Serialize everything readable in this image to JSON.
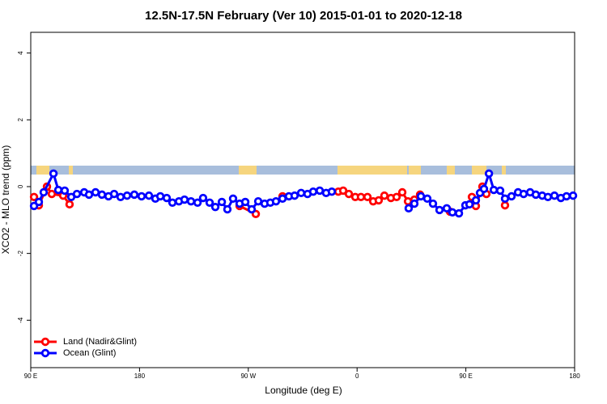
{
  "chart_data": {
    "type": "line",
    "title": "12.5N-17.5N February (Ver 10)   2015-01-01 to 2020-12-18",
    "x_label": "Longitude (deg E)",
    "y_label": "XCO2 - MLO trend (ppm)",
    "xlim": [
      90,
      540
    ],
    "xticks": [
      {
        "value": 90,
        "label": "90 E"
      },
      180,
      {
        "value": 270,
        "label": "90 W"
      },
      {
        "value": 360,
        "label": "0"
      },
      {
        "value": 450,
        "label": "90 E"
      },
      {
        "value": 540,
        "label": "180"
      }
    ],
    "ylim": [
      -5.42,
      4.62
    ],
    "yticks": [
      -4,
      -2,
      0,
      2,
      4
    ],
    "legend": "bottom-left",
    "series": [
      {
        "name": "Land (Nadir&Glint)",
        "color": "#ff0000",
        "x": [
          92.7,
          96.7,
          103.4,
          107.4,
          116.8,
          122.1,
          null,
          262.8,
          276.2,
          null,
          298.3,
          null,
          344.5,
          348.5,
          353.2,
          358.5,
          363.2,
          368.6,
          373.3,
          377.9,
          382.6,
          388.0,
          392.7,
          397.4,
          402.1,
          407.4,
          412.1,
          null,
          436.9,
          null,
          455.0,
          458.3,
          463.7,
          467.0,
          null,
          482.4
        ],
        "values": [
          -0.31,
          -0.56,
          0.0,
          -0.22,
          -0.27,
          -0.53,
          null,
          -0.58,
          -0.82,
          null,
          -0.29,
          null,
          -0.15,
          -0.12,
          -0.22,
          -0.31,
          -0.31,
          -0.31,
          -0.44,
          -0.41,
          -0.27,
          -0.34,
          -0.31,
          -0.17,
          -0.44,
          -0.39,
          -0.24,
          null,
          -0.75,
          null,
          -0.31,
          -0.58,
          0.0,
          -0.22,
          null,
          -0.56
        ]
      },
      {
        "name": "Ocean (Glint)",
        "color": "#0000ff",
        "x": [
          92.7,
          96.7,
          100.7,
          108.8,
          112.8,
          118.1,
          123.5,
          128.2,
          134.2,
          138.2,
          143.6,
          148.9,
          154.3,
          159.0,
          164.3,
          169.7,
          175.7,
          181.7,
          187.8,
          193.1,
          197.2,
          202.5,
          207.2,
          212.6,
          217.2,
          222.6,
          228.0,
          232.6,
          238.0,
          242.7,
          248.1,
          252.7,
          257.4,
          262.8,
          267.5,
          272.8,
          278.2,
          283.5,
          288.2,
          292.9,
          298.3,
          303.6,
          308.3,
          313.7,
          319.0,
          323.7,
          329.1,
          334.4,
          339.1,
          null,
          402.7,
          407.4,
          412.8,
          418.1,
          422.8,
          428.2,
          434.2,
          438.9,
          444.3,
          449.6,
          453.0,
          458.3,
          461.7,
          465.0,
          469.1,
          473.1,
          478.4,
          482.4,
          487.8,
          493.2,
          497.8,
          503.2,
          507.9,
          513.2,
          517.9,
          523.3,
          528.6,
          533.3,
          538.7
        ],
        "values": [
          -0.58,
          -0.46,
          -0.17,
          0.39,
          -0.1,
          -0.12,
          -0.31,
          -0.22,
          -0.17,
          -0.24,
          -0.17,
          -0.24,
          -0.29,
          -0.22,
          -0.31,
          -0.27,
          -0.24,
          -0.29,
          -0.27,
          -0.36,
          -0.29,
          -0.34,
          -0.48,
          -0.44,
          -0.39,
          -0.44,
          -0.48,
          -0.34,
          -0.48,
          -0.61,
          -0.46,
          -0.68,
          -0.36,
          -0.51,
          -0.46,
          -0.68,
          -0.44,
          -0.51,
          -0.48,
          -0.44,
          -0.36,
          -0.29,
          -0.27,
          -0.19,
          -0.22,
          -0.15,
          -0.12,
          -0.19,
          -0.15,
          null,
          -0.65,
          -0.51,
          -0.29,
          -0.36,
          -0.51,
          -0.7,
          -0.65,
          -0.77,
          -0.8,
          -0.56,
          -0.53,
          -0.41,
          -0.19,
          -0.07,
          0.39,
          -0.1,
          -0.12,
          -0.36,
          -0.29,
          -0.17,
          -0.22,
          -0.17,
          -0.24,
          -0.27,
          -0.31,
          -0.27,
          -0.34,
          -0.29,
          -0.27
        ]
      }
    ]
  }
}
